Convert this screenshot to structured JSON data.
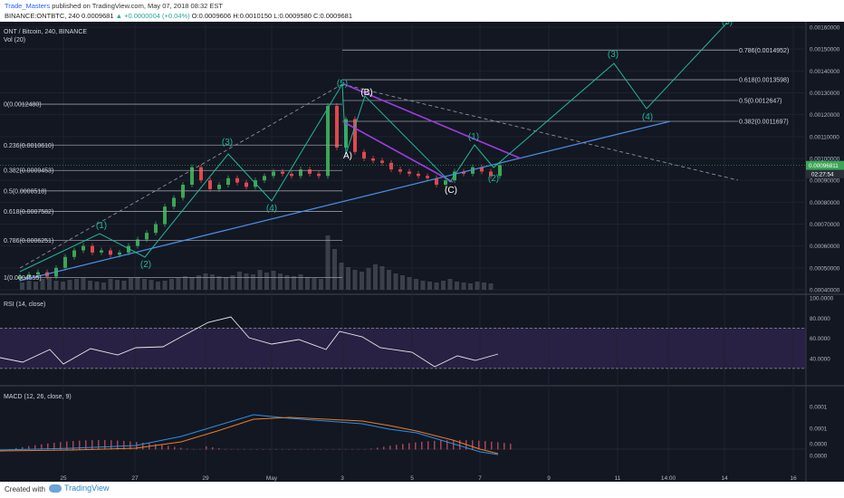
{
  "header": {
    "author": "Trade_Masters",
    "published": "published on TradingView.com, May 07, 2018 08:32 EST",
    "symbol_line": "BINANCE:ONTBTC, 240",
    "price": "0.0009681",
    "change": "+0.0000004 (+0.04%)",
    "ohlc": "O:0.0009606 H:0.0010150 L:0.0009580 C:0.0009681"
  },
  "footer": {
    "created": "Created with",
    "brand": "TradingView"
  },
  "chart_data": {
    "type": "line",
    "title": "ONT / Bitcoin, 240, BINANCE",
    "panels": {
      "price": {
        "legend": "ONT / Bitcoin, 240, BINANCE",
        "volume_legend": "Vol (20)",
        "ylim": [
          0.0004,
          0.0016
        ],
        "y_ticks": [
          "0.00160000",
          "0.00150000",
          "0.00140000",
          "0.00130000",
          "0.00120000",
          "0.00110000",
          "0.00100000",
          "0.00090000",
          "0.00080000",
          "0.00070000",
          "0.00060000",
          "0.00050000",
          "0.00040000"
        ],
        "last_price_label": "0.00096811",
        "countdown_label": "02:27:54"
      },
      "rsi": {
        "legend": "RSI (14, close)",
        "ylim": [
          20,
          100
        ],
        "y_ticks": [
          "100.0000",
          "80.0000",
          "60.0000",
          "40.0000"
        ],
        "band": [
          30,
          70
        ]
      },
      "macd": {
        "legend": "MACD (12, 26, close, 9)",
        "y_ticks": [
          "0.0001",
          "0.0001",
          "0.0000",
          "0.0000"
        ]
      }
    },
    "x_ticks": [
      "25",
      "27",
      "29",
      "May",
      "3",
      "5",
      "7",
      "9",
      "11",
      "14:00",
      "14",
      "16"
    ],
    "fib_levels_left": [
      {
        "label": "0(0.0012480)",
        "price": 0.001248
      },
      {
        "label": "0.236(0.0010610)",
        "price": 0.001061
      },
      {
        "label": "0.382(0.0009453)",
        "price": 0.0009453
      },
      {
        "label": "0.5(0.0008518)",
        "price": 0.0008518
      },
      {
        "label": "0.618(0.0007582)",
        "price": 0.0007582
      },
      {
        "label": "0.786(0.0006251)",
        "price": 0.0006251
      },
      {
        "label": "1(0.0004555)",
        "price": 0.0004555
      }
    ],
    "fib_levels_right": [
      {
        "label": "0.786(0.0014952)",
        "price": 0.0014952
      },
      {
        "label": "0.618(0.0013598)",
        "price": 0.0013598
      },
      {
        "label": "0.5(0.0012647)",
        "price": 0.0012647
      },
      {
        "label": "0.382(0.0011697)",
        "price": 0.0011697
      }
    ],
    "wave_labels": [
      "(1)",
      "(2)",
      "(3)",
      "(4)",
      "(5)",
      "(B)",
      "A)",
      "(C)",
      "(1)",
      "(2)",
      "(3)",
      "(4)",
      "(5)"
    ],
    "series": [
      {
        "name": "ONT / Bitcoin",
        "type": "candlestick"
      },
      {
        "name": "RSI (14, close)",
        "type": "line"
      },
      {
        "name": "MACD (12, 26, close, 9)",
        "type": "line"
      }
    ],
    "colors": {
      "up": "#3aa655",
      "down": "#e0484d",
      "wave": "#1fb89a",
      "trend": "#4a8fe8",
      "channel": "#9b3de0",
      "rsi": "#e8e8e8",
      "macd": "#2d8fe0",
      "signal": "#e87d2a",
      "bg": "#131722"
    }
  }
}
